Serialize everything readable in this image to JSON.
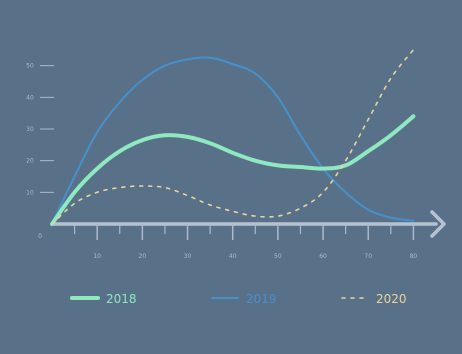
{
  "chart_data": {
    "type": "line",
    "title": "",
    "xlabel": "",
    "ylabel": "",
    "origin_label": "0",
    "x_ticks": [
      "10",
      "20",
      "30",
      "40",
      "50",
      "60",
      "70",
      "80"
    ],
    "y_ticks": [
      "10",
      "20",
      "30",
      "40",
      "50"
    ],
    "xlim": [
      0,
      85
    ],
    "ylim": [
      0,
      60
    ],
    "grid": false,
    "legend_position": "bottom",
    "series": [
      {
        "name": "2018",
        "color": "#8ee8c0",
        "style": "solid",
        "x": [
          0,
          5,
          10,
          15,
          20,
          25,
          30,
          35,
          40,
          45,
          50,
          55,
          60,
          65,
          70,
          75,
          80
        ],
        "y": [
          0,
          10,
          17.5,
          23,
          26.5,
          28,
          27.5,
          25.5,
          22.5,
          20,
          18.5,
          18,
          17.5,
          18.5,
          23,
          28,
          34
        ]
      },
      {
        "name": "2019",
        "color": "#4691cc",
        "style": "solid",
        "x": [
          0,
          5,
          10,
          15,
          20,
          25,
          30,
          35,
          40,
          45,
          50,
          55,
          60,
          65,
          70,
          75,
          80
        ],
        "y": [
          0,
          15,
          29,
          38.5,
          45.5,
          50,
          52,
          52.5,
          50.5,
          47.5,
          40,
          28,
          17.5,
          10,
          4.5,
          2,
          1
        ]
      },
      {
        "name": "2020",
        "color": "#e9d49b",
        "style": "dashed",
        "x": [
          0,
          5,
          10,
          15,
          20,
          25,
          30,
          35,
          40,
          45,
          50,
          55,
          60,
          65,
          70,
          75,
          80
        ],
        "y": [
          0,
          6.5,
          10,
          11.5,
          12,
          11.5,
          9,
          6,
          4,
          2.5,
          2.5,
          5,
          10,
          20,
          33,
          46,
          55
        ]
      }
    ]
  }
}
